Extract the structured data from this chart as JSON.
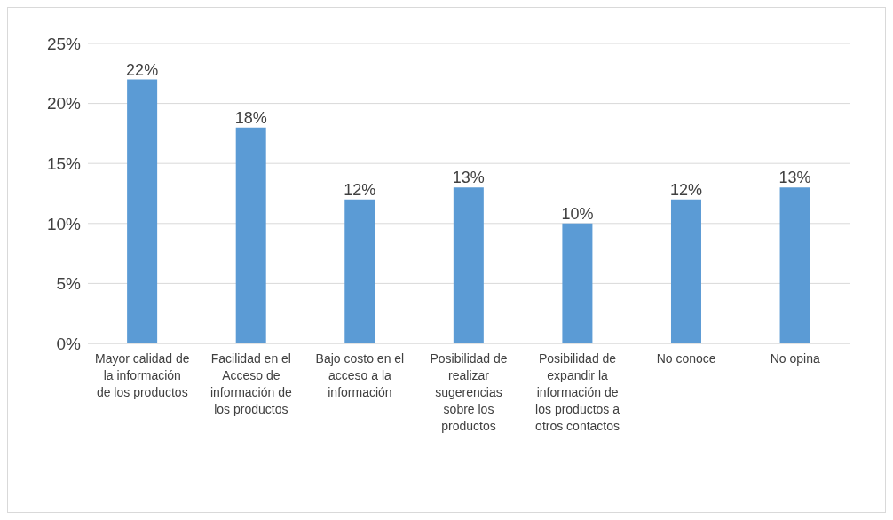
{
  "chart_data": {
    "type": "bar",
    "categories": [
      "Mayor calidad de la información de los productos",
      "Facilidad en el Acceso de información de los productos",
      "Bajo costo en el acceso a la información",
      "Posibilidad de realizar sugerencias sobre los productos",
      "Posibilidad de expandir la información de los productos a otros contactos",
      "No conoce",
      "No opina"
    ],
    "values": [
      22,
      18,
      12,
      13,
      10,
      12,
      13
    ],
    "value_labels": [
      "22%",
      "18%",
      "12%",
      "13%",
      "10%",
      "12%",
      "13%"
    ],
    "color": "#5b9bd5",
    "ylim": [
      0,
      25
    ],
    "yticks": [
      {
        "value": 0,
        "label": "0%"
      },
      {
        "value": 5,
        "label": "5%"
      },
      {
        "value": 10,
        "label": "10%"
      },
      {
        "value": 15,
        "label": "15%"
      },
      {
        "value": 20,
        "label": "20%"
      },
      {
        "value": 25,
        "label": "25%"
      }
    ],
    "grid": "y",
    "legend": false
  }
}
